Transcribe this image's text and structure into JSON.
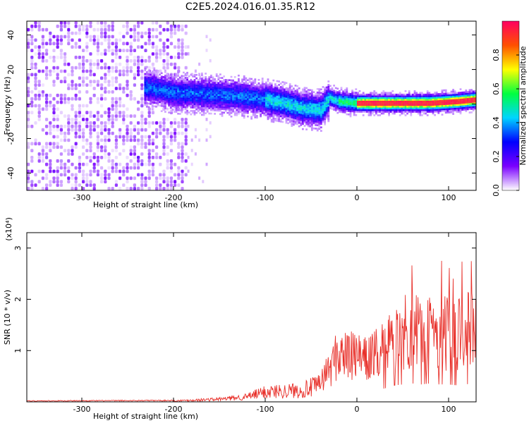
{
  "title": "C2E5.2024.016.01.35.R12",
  "chart_data": [
    {
      "type": "heatmap",
      "xlabel": "Height of straight line (km)",
      "ylabel": "Frequency (Hz)",
      "xlim": [
        -360,
        130
      ],
      "ylim": [
        -50,
        48
      ],
      "xticks": [
        -300,
        -200,
        -100,
        0,
        100
      ],
      "yticks": [
        -40,
        -20,
        0,
        20,
        40
      ],
      "colorbar": {
        "label": "Normalized spectral amplitude",
        "range": [
          0.0,
          1.0
        ],
        "ticks": [
          0.0,
          0.2,
          0.4,
          0.6,
          0.8
        ],
        "colors": [
          "#ffffff",
          "#7a00ff",
          "#0000ff",
          "#00d5ff",
          "#00ff40",
          "#ffff00",
          "#ff5000",
          "#ff0060"
        ]
      },
      "ridge": {
        "x": [
          -230,
          -200,
          -160,
          -130,
          -100,
          -80,
          -60,
          -40,
          -30,
          -20,
          0,
          40,
          80,
          110,
          130
        ],
        "y": [
          9,
          6,
          5,
          4,
          2,
          0,
          -3,
          -4,
          3,
          1,
          0,
          0,
          0,
          1,
          2
        ]
      }
    },
    {
      "type": "line",
      "xlabel": "Height of straight line (km)",
      "ylabel": "SNR (10 * v/v)",
      "yscale_label": "(x10⁴)",
      "xlim": [
        -360,
        130
      ],
      "ylim": [
        0,
        3.3
      ],
      "xticks": [
        -300,
        -200,
        -100,
        0,
        100
      ],
      "yticks": [
        1,
        2,
        3
      ],
      "color": "#e8302a",
      "envelope": {
        "x": [
          -360,
          -200,
          -180,
          -150,
          -120,
          -100,
          -60,
          -40,
          -30,
          -20,
          -10,
          0,
          10,
          20,
          30,
          40,
          50,
          60,
          70,
          80,
          90,
          100,
          110,
          120,
          125,
          128,
          130
        ],
        "y": [
          0.02,
          0.03,
          0.05,
          0.08,
          0.15,
          0.3,
          0.35,
          0.5,
          0.8,
          1.2,
          1.1,
          1.1,
          1.0,
          1.2,
          1.3,
          1.6,
          1.7,
          1.8,
          1.7,
          1.8,
          1.7,
          1.7,
          1.6,
          1.7,
          1.9,
          2.0,
          1.8
        ]
      }
    }
  ]
}
